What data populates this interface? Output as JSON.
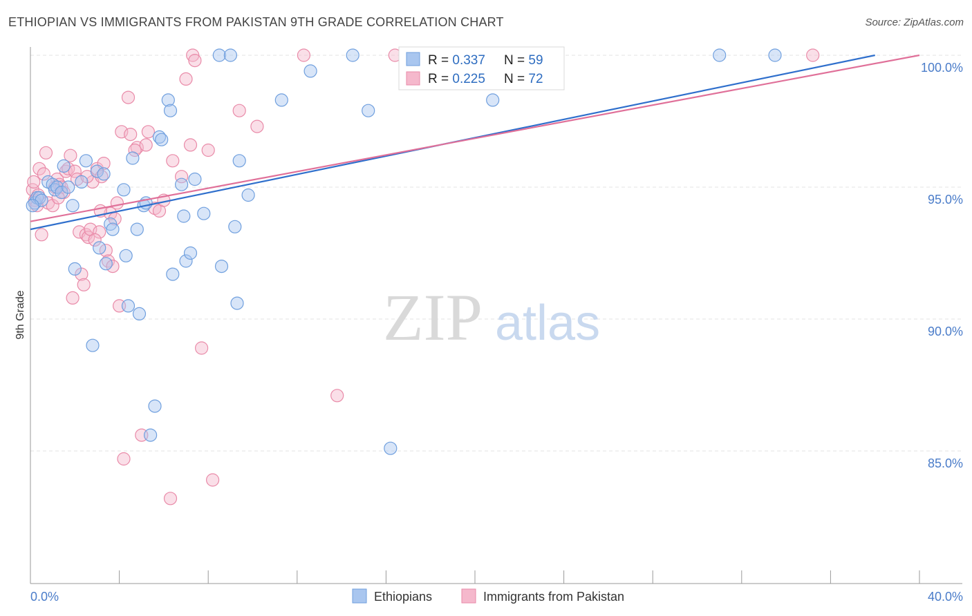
{
  "title": "ETHIOPIAN VS IMMIGRANTS FROM PAKISTAN 9TH GRADE CORRELATION CHART",
  "source": "Source: ZipAtlas.com",
  "watermark": {
    "zip": "ZIP",
    "atlas": "atlas"
  },
  "colors": {
    "blue_fill": "#a9c6ef",
    "blue_stroke": "#6f9fde",
    "blue_line": "#2f6fcc",
    "pink_fill": "#f5b8cc",
    "pink_stroke": "#e98aa8",
    "pink_line": "#e07099",
    "grid": "#e3e3e3",
    "axis": "#999999",
    "accent_text": "#4a7cc9"
  },
  "stats": [
    {
      "r_label": "R = ",
      "r_value": "0.337",
      "n_label": "N = ",
      "n_value": "59"
    },
    {
      "r_label": "R = ",
      "r_value": "0.225",
      "n_label": "N = ",
      "n_value": "72"
    }
  ],
  "chart_data": {
    "type": "scatter",
    "title": "ETHIOPIAN VS IMMIGRANTS FROM PAKISTAN 9TH GRADE CORRELATION CHART",
    "xlabel": "",
    "ylabel": "9th Grade",
    "xlim": [
      0,
      40
    ],
    "ylim": [
      80.5,
      100.7
    ],
    "x_tick_labels": [
      {
        "value": 0,
        "label": "0.0%"
      },
      {
        "value": 40,
        "label": "40.0%"
      }
    ],
    "y_tick_labels": [
      {
        "value": 100,
        "label": "100.0%"
      },
      {
        "value": 95,
        "label": "95.0%"
      },
      {
        "value": 90,
        "label": "90.0%"
      },
      {
        "value": 85,
        "label": "85.0%"
      }
    ],
    "legend_placement": "bottom-center",
    "series": [
      {
        "name": "Ethiopians",
        "color": "blue",
        "trend": {
          "x0": 0,
          "y0": 93.4,
          "x1": 38.0,
          "y1": 100.0
        },
        "points": [
          [
            0.2,
            94.4
          ],
          [
            0.3,
            94.6
          ],
          [
            0.4,
            94.6
          ],
          [
            0.5,
            94.5
          ],
          [
            0.8,
            95.2
          ],
          [
            1.0,
            95.1
          ],
          [
            1.1,
            94.9
          ],
          [
            1.2,
            95.0
          ],
          [
            1.4,
            94.8
          ],
          [
            1.5,
            95.8
          ],
          [
            1.7,
            95.0
          ],
          [
            1.9,
            94.3
          ],
          [
            2.0,
            91.9
          ],
          [
            2.3,
            95.2
          ],
          [
            2.5,
            96.0
          ],
          [
            2.8,
            89.0
          ],
          [
            3.0,
            95.6
          ],
          [
            3.1,
            92.7
          ],
          [
            3.3,
            95.5
          ],
          [
            3.4,
            92.1
          ],
          [
            3.6,
            93.6
          ],
          [
            3.7,
            93.4
          ],
          [
            4.2,
            94.9
          ],
          [
            4.3,
            92.4
          ],
          [
            4.4,
            90.5
          ],
          [
            4.6,
            96.1
          ],
          [
            4.8,
            93.4
          ],
          [
            4.9,
            90.2
          ],
          [
            5.1,
            94.3
          ],
          [
            5.2,
            94.4
          ],
          [
            5.4,
            85.6
          ],
          [
            5.6,
            86.7
          ],
          [
            5.8,
            96.9
          ],
          [
            5.9,
            96.8
          ],
          [
            6.2,
            98.3
          ],
          [
            6.3,
            97.9
          ],
          [
            6.4,
            91.7
          ],
          [
            6.8,
            95.1
          ],
          [
            6.9,
            93.9
          ],
          [
            7.0,
            92.2
          ],
          [
            7.2,
            92.5
          ],
          [
            7.4,
            95.3
          ],
          [
            7.8,
            94.0
          ],
          [
            8.6,
            92.0
          ],
          [
            8.5,
            100.0
          ],
          [
            9.0,
            100.0
          ],
          [
            9.2,
            93.5
          ],
          [
            9.3,
            90.6
          ],
          [
            9.4,
            96.0
          ],
          [
            9.8,
            94.7
          ],
          [
            11.3,
            98.3
          ],
          [
            12.6,
            99.4
          ],
          [
            14.5,
            100.0
          ],
          [
            15.2,
            97.9
          ],
          [
            16.2,
            85.1
          ],
          [
            20.8,
            98.3
          ],
          [
            31.0,
            100.0
          ],
          [
            33.5,
            100.0
          ],
          [
            0.1,
            94.3
          ]
        ]
      },
      {
        "name": "Immigrants from Pakistan",
        "color": "pink",
        "trend": {
          "x0": 0,
          "y0": 93.7,
          "x1": 40.0,
          "y1": 100.0
        },
        "points": [
          [
            0.1,
            94.9
          ],
          [
            0.2,
            94.5
          ],
          [
            0.3,
            94.3
          ],
          [
            0.4,
            95.7
          ],
          [
            0.5,
            93.2
          ],
          [
            0.6,
            95.5
          ],
          [
            0.7,
            96.3
          ],
          [
            0.8,
            94.4
          ],
          [
            1.0,
            94.3
          ],
          [
            1.1,
            95.0
          ],
          [
            1.2,
            95.3
          ],
          [
            1.3,
            95.1
          ],
          [
            1.4,
            95.0
          ],
          [
            1.5,
            94.8
          ],
          [
            1.6,
            95.6
          ],
          [
            1.7,
            95.7
          ],
          [
            1.8,
            96.2
          ],
          [
            1.9,
            90.8
          ],
          [
            2.0,
            95.6
          ],
          [
            2.1,
            95.3
          ],
          [
            2.2,
            93.3
          ],
          [
            2.3,
            91.7
          ],
          [
            2.4,
            91.3
          ],
          [
            2.5,
            93.2
          ],
          [
            2.6,
            93.1
          ],
          [
            2.7,
            93.4
          ],
          [
            2.8,
            95.2
          ],
          [
            3.0,
            95.7
          ],
          [
            3.1,
            93.3
          ],
          [
            3.2,
            95.4
          ],
          [
            3.3,
            95.9
          ],
          [
            3.4,
            92.6
          ],
          [
            3.5,
            92.2
          ],
          [
            3.6,
            94.0
          ],
          [
            3.7,
            92.0
          ],
          [
            3.8,
            93.8
          ],
          [
            3.9,
            94.4
          ],
          [
            4.0,
            90.5
          ],
          [
            4.1,
            97.1
          ],
          [
            4.2,
            84.7
          ],
          [
            4.4,
            98.4
          ],
          [
            4.5,
            97.0
          ],
          [
            4.8,
            96.5
          ],
          [
            5.0,
            85.6
          ],
          [
            5.2,
            96.6
          ],
          [
            5.3,
            97.1
          ],
          [
            5.6,
            94.2
          ],
          [
            5.8,
            94.1
          ],
          [
            6.0,
            94.5
          ],
          [
            6.3,
            83.2
          ],
          [
            6.4,
            96.0
          ],
          [
            6.8,
            95.4
          ],
          [
            7.0,
            99.1
          ],
          [
            7.2,
            96.6
          ],
          [
            7.3,
            100.0
          ],
          [
            7.4,
            99.8
          ],
          [
            7.7,
            88.9
          ],
          [
            8.0,
            96.4
          ],
          [
            8.2,
            83.9
          ],
          [
            9.4,
            97.9
          ],
          [
            10.2,
            97.3
          ],
          [
            12.3,
            100.0
          ],
          [
            13.8,
            87.1
          ],
          [
            16.4,
            100.0
          ],
          [
            35.2,
            100.0
          ],
          [
            0.15,
            95.2
          ],
          [
            0.35,
            94.7
          ],
          [
            2.9,
            93.0
          ],
          [
            1.25,
            94.6
          ],
          [
            3.15,
            94.1
          ],
          [
            4.7,
            96.4
          ],
          [
            2.55,
            95.4
          ]
        ]
      }
    ]
  }
}
